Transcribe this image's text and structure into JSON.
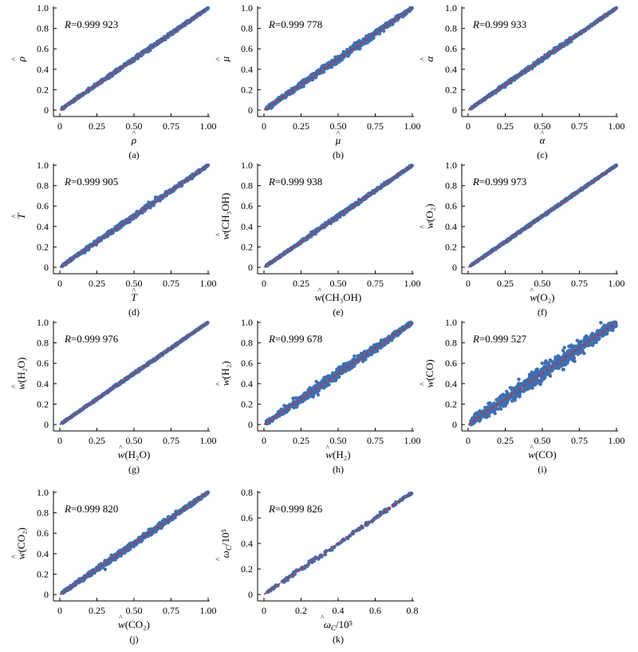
{
  "chart_data": [
    {
      "type": "scatter",
      "panel": "(a)",
      "r_label": "R",
      "r_value": "=0.999 923",
      "xlabel_var": "ρ",
      "xlabel_rest": "",
      "ylabel_var": "ρ",
      "ylabel_rest": "",
      "xlim": [
        0,
        1
      ],
      "ylim": [
        0,
        1
      ],
      "xticks": [
        "0",
        "0.25",
        "0.50",
        "0.75",
        "1.00"
      ],
      "yticks": [
        "0",
        "0.2",
        "0.4",
        "0.6",
        "0.8",
        "1.0"
      ],
      "noise": 0.006,
      "dense": true,
      "fit_line": {
        "x": [
          0,
          1
        ],
        "y": [
          0,
          1
        ]
      }
    },
    {
      "type": "scatter",
      "panel": "(b)",
      "r_label": "R",
      "r_value": "=0.999 778",
      "xlabel_var": "μ",
      "xlabel_rest": "",
      "ylabel_var": "μ",
      "ylabel_rest": "",
      "xlim": [
        0,
        1
      ],
      "ylim": [
        0,
        1
      ],
      "xticks": [
        "0",
        "0.25",
        "0.50",
        "0.75",
        "1.00"
      ],
      "yticks": [
        "0",
        "0.2",
        "0.4",
        "0.6",
        "0.8",
        "1.0"
      ],
      "noise": 0.012,
      "dense": true,
      "fit_line": {
        "x": [
          0,
          1
        ],
        "y": [
          0,
          1
        ]
      }
    },
    {
      "type": "scatter",
      "panel": "(c)",
      "r_label": "R",
      "r_value": "=0.999 933",
      "xlabel_var": "α",
      "xlabel_rest": "",
      "ylabel_var": "α",
      "ylabel_rest": "",
      "xlim": [
        0,
        1
      ],
      "ylim": [
        0,
        1
      ],
      "xticks": [
        "0",
        "0.25",
        "0.50",
        "0.75",
        "1.00"
      ],
      "yticks": [
        "0",
        "0.2",
        "0.4",
        "0.6",
        "0.8",
        "1.0"
      ],
      "noise": 0.006,
      "dense": true,
      "fit_line": {
        "x": [
          0,
          1
        ],
        "y": [
          0,
          1
        ]
      }
    },
    {
      "type": "scatter",
      "panel": "(d)",
      "r_label": "R",
      "r_value": "=0.999 905",
      "xlabel_var": "T",
      "xlabel_rest": "",
      "ylabel_var": "T",
      "ylabel_rest": "",
      "xlim": [
        0,
        1
      ],
      "ylim": [
        0,
        1
      ],
      "xticks": [
        "0",
        "0.25",
        "0.50",
        "0.75",
        "1.00"
      ],
      "yticks": [
        "0",
        "0.2",
        "0.4",
        "0.6",
        "0.8",
        "1.0"
      ],
      "noise": 0.008,
      "dense": true,
      "fit_line": {
        "x": [
          0,
          1
        ],
        "y": [
          0,
          1
        ]
      }
    },
    {
      "type": "scatter",
      "panel": "(e)",
      "r_label": "R",
      "r_value": "=0.999 938",
      "xlabel_var": "w",
      "xlabel_rest": "(CH₃OH)",
      "ylabel_var": "w",
      "ylabel_rest": "(CH₃OH)",
      "xlim": [
        0,
        1
      ],
      "ylim": [
        0,
        1
      ],
      "xticks": [
        "0",
        "0.25",
        "0.50",
        "0.75",
        "1.00"
      ],
      "yticks": [
        "0",
        "0.2",
        "0.4",
        "0.6",
        "0.8",
        "1.0"
      ],
      "noise": 0.006,
      "dense": true,
      "fit_line": {
        "x": [
          0,
          1
        ],
        "y": [
          0,
          1
        ]
      }
    },
    {
      "type": "scatter",
      "panel": "(f)",
      "r_label": "R",
      "r_value": "=0.999 973",
      "xlabel_var": "w",
      "xlabel_rest": "(O₂)",
      "ylabel_var": "w",
      "ylabel_rest": "(O₂)",
      "xlim": [
        0,
        1
      ],
      "ylim": [
        0,
        1
      ],
      "xticks": [
        "0",
        "0.25",
        "0.50",
        "0.75",
        "1.00"
      ],
      "yticks": [
        "0",
        "0.2",
        "0.4",
        "0.6",
        "0.8",
        "1.0"
      ],
      "noise": 0.004,
      "dense": true,
      "fit_line": {
        "x": [
          0,
          1
        ],
        "y": [
          0,
          1
        ]
      }
    },
    {
      "type": "scatter",
      "panel": "(g)",
      "r_label": "R",
      "r_value": "=0.999 976",
      "xlabel_var": "w",
      "xlabel_rest": "(H₂O)",
      "ylabel_var": "w",
      "ylabel_rest": "(H₂O)",
      "xlim": [
        0,
        1
      ],
      "ylim": [
        0,
        1
      ],
      "xticks": [
        "0",
        "0.25",
        "0.50",
        "0.75",
        "1.00"
      ],
      "yticks": [
        "0",
        "0.2",
        "0.4",
        "0.6",
        "0.8",
        "1.0"
      ],
      "noise": 0.004,
      "dense": true,
      "fit_line": {
        "x": [
          0,
          1
        ],
        "y": [
          0,
          1
        ]
      }
    },
    {
      "type": "scatter",
      "panel": "(h)",
      "r_label": "R",
      "r_value": "=0.999 678",
      "xlabel_var": "w",
      "xlabel_rest": "(H₂)",
      "ylabel_var": "w",
      "ylabel_rest": "(H₂)",
      "xlim": [
        0,
        1
      ],
      "ylim": [
        0,
        1
      ],
      "xticks": [
        "0",
        "0.25",
        "0.50",
        "0.75",
        "1.00"
      ],
      "yticks": [
        "0",
        "0.2",
        "0.4",
        "0.6",
        "0.8",
        "1.0"
      ],
      "noise": 0.016,
      "dense": true,
      "fit_line": {
        "x": [
          0,
          1
        ],
        "y": [
          0,
          1
        ]
      }
    },
    {
      "type": "scatter",
      "panel": "(i)",
      "r_label": "R",
      "r_value": "=0.999 527",
      "xlabel_var": "w",
      "xlabel_rest": "(CO)",
      "ylabel_var": "w",
      "ylabel_rest": "(CO)",
      "xlim": [
        0,
        1
      ],
      "ylim": [
        0,
        1
      ],
      "xticks": [
        "0",
        "0.25",
        "0.50",
        "0.75",
        "1.00"
      ],
      "yticks": [
        "0",
        "0.2",
        "0.4",
        "0.6",
        "0.8",
        "1.0"
      ],
      "noise": 0.028,
      "dense": true,
      "fit_line": {
        "x": [
          0,
          1
        ],
        "y": [
          0,
          1
        ]
      }
    },
    {
      "type": "scatter",
      "panel": "(j)",
      "r_label": "R",
      "r_value": "=0.999 820",
      "xlabel_var": "w",
      "xlabel_rest": "(CO₂)",
      "ylabel_var": "w",
      "ylabel_rest": "(CO₂)",
      "xlim": [
        0,
        1
      ],
      "ylim": [
        0,
        1
      ],
      "xticks": [
        "0",
        "0.25",
        "0.50",
        "0.75",
        "1.00"
      ],
      "yticks": [
        "0",
        "0.2",
        "0.4",
        "0.6",
        "0.8",
        "1.0"
      ],
      "noise": 0.01,
      "dense": true,
      "fit_line": {
        "x": [
          0,
          1
        ],
        "y": [
          0,
          1
        ]
      }
    },
    {
      "type": "scatter",
      "panel": "(k)",
      "r_label": "R",
      "r_value": "=0.999 826",
      "xlabel_var": "ω",
      "xlabel_rest": "_C/10⁵",
      "ylabel_var": "ω",
      "ylabel_rest": "_C/10⁵",
      "xlim": [
        0,
        0.8
      ],
      "ylim": [
        0,
        0.8
      ],
      "xticks": [
        "0",
        "0.2",
        "0.4",
        "0.6",
        "0.8"
      ],
      "yticks": [
        "0",
        "0.2",
        "0.4",
        "0.6",
        "0.8"
      ],
      "noise": 0.008,
      "dense": false,
      "fit_line": {
        "x": [
          0,
          0.8
        ],
        "y": [
          0,
          0.8
        ]
      }
    }
  ],
  "colors": {
    "points": "#3f6fb0",
    "fit_line": "#d62728",
    "axis": "#000000"
  }
}
